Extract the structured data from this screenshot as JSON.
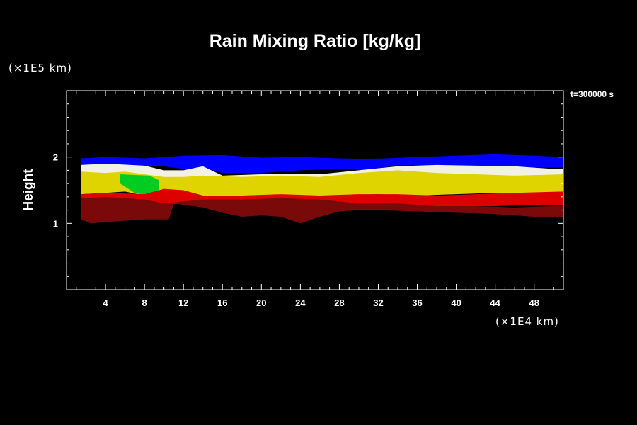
{
  "chart_data": {
    "type": "heatmap",
    "title": "Rain Mixing Ratio [kg/kg]",
    "ylabel": "Height",
    "y_unit": "(×1E5 km)",
    "x_unit": "(×1E4 km)",
    "timestamp": "t=300000 s",
    "xlim": [
      0,
      51
    ],
    "ylim": [
      0,
      3
    ],
    "x_ticks": [
      4,
      8,
      12,
      16,
      20,
      24,
      28,
      32,
      36,
      40,
      44,
      48
    ],
    "y_ticks": [
      1,
      2
    ],
    "colors": {
      "background": "#000000",
      "blue": "#0000ff",
      "white": "#f2f2e4",
      "yellow": "#e0d400",
      "green": "#00cc22",
      "red": "#dd0000",
      "dark_red": "#7a0a0a"
    },
    "bands": [
      {
        "name": "blue",
        "top": [
          [
            1.5,
            1.98
          ],
          [
            4,
            2.0
          ],
          [
            8,
            1.98
          ],
          [
            12,
            2.02
          ],
          [
            16,
            2.03
          ],
          [
            20,
            1.99
          ],
          [
            24,
            2.0
          ],
          [
            28,
            1.98
          ],
          [
            31,
            1.97
          ],
          [
            36,
            2.0
          ],
          [
            40,
            2.02
          ],
          [
            44,
            2.04
          ],
          [
            48,
            2.02
          ],
          [
            51,
            2.0
          ]
        ],
        "bottom": [
          [
            1.5,
            1.86
          ],
          [
            6,
            1.88
          ],
          [
            10,
            1.86
          ],
          [
            12,
            1.82
          ],
          [
            14,
            1.84
          ],
          [
            16,
            1.76
          ],
          [
            20,
            1.76
          ],
          [
            24,
            1.8
          ],
          [
            28,
            1.82
          ],
          [
            31,
            1.8
          ],
          [
            34,
            1.88
          ],
          [
            38,
            1.86
          ],
          [
            42,
            1.86
          ],
          [
            46,
            1.84
          ],
          [
            51,
            1.84
          ]
        ]
      },
      {
        "name": "white",
        "top": [
          [
            1.5,
            1.88
          ],
          [
            4,
            1.9
          ],
          [
            8,
            1.87
          ],
          [
            10,
            1.8
          ],
          [
            12,
            1.8
          ],
          [
            14,
            1.86
          ],
          [
            16,
            1.72
          ],
          [
            20,
            1.74
          ],
          [
            26,
            1.74
          ],
          [
            30,
            1.8
          ],
          [
            34,
            1.86
          ],
          [
            38,
            1.88
          ],
          [
            42,
            1.87
          ],
          [
            46,
            1.86
          ],
          [
            50,
            1.82
          ],
          [
            51,
            1.82
          ]
        ],
        "bottom": [
          [
            1.5,
            1.72
          ],
          [
            6,
            1.74
          ],
          [
            10,
            1.68
          ],
          [
            14,
            1.66
          ],
          [
            18,
            1.64
          ],
          [
            24,
            1.66
          ],
          [
            30,
            1.68
          ],
          [
            36,
            1.7
          ],
          [
            42,
            1.72
          ],
          [
            48,
            1.7
          ],
          [
            51,
            1.7
          ]
        ]
      },
      {
        "name": "yellow",
        "top": [
          [
            1.5,
            1.78
          ],
          [
            4,
            1.76
          ],
          [
            6,
            1.78
          ],
          [
            8,
            1.74
          ],
          [
            10,
            1.7
          ],
          [
            12,
            1.7
          ],
          [
            14,
            1.72
          ],
          [
            18,
            1.7
          ],
          [
            22,
            1.72
          ],
          [
            26,
            1.7
          ],
          [
            30,
            1.76
          ],
          [
            34,
            1.8
          ],
          [
            38,
            1.76
          ],
          [
            42,
            1.74
          ],
          [
            46,
            1.72
          ],
          [
            51,
            1.74
          ]
        ],
        "bottom": [
          [
            1.5,
            1.44
          ],
          [
            4,
            1.46
          ],
          [
            6,
            1.48
          ],
          [
            8,
            1.42
          ],
          [
            10,
            1.44
          ],
          [
            12,
            1.38
          ],
          [
            16,
            1.36
          ],
          [
            20,
            1.4
          ],
          [
            24,
            1.38
          ],
          [
            28,
            1.42
          ],
          [
            32,
            1.44
          ],
          [
            36,
            1.42
          ],
          [
            40,
            1.44
          ],
          [
            44,
            1.46
          ],
          [
            48,
            1.44
          ],
          [
            51,
            1.46
          ]
        ]
      },
      {
        "name": "green",
        "top": [
          [
            5.5,
            1.74
          ],
          [
            7,
            1.73
          ],
          [
            8.5,
            1.72
          ],
          [
            9.5,
            1.65
          ]
        ],
        "bottom": [
          [
            5.5,
            1.6
          ],
          [
            7,
            1.46
          ],
          [
            8.5,
            1.42
          ],
          [
            9.5,
            1.5
          ]
        ]
      },
      {
        "name": "red",
        "top": [
          [
            1.5,
            1.44
          ],
          [
            4,
            1.46
          ],
          [
            8,
            1.44
          ],
          [
            10,
            1.52
          ],
          [
            12,
            1.5
          ],
          [
            14,
            1.42
          ],
          [
            18,
            1.42
          ],
          [
            22,
            1.44
          ],
          [
            26,
            1.42
          ],
          [
            30,
            1.44
          ],
          [
            34,
            1.44
          ],
          [
            38,
            1.42
          ],
          [
            42,
            1.44
          ],
          [
            46,
            1.46
          ],
          [
            51,
            1.48
          ]
        ],
        "bottom": [
          [
            1.5,
            1.3
          ],
          [
            6,
            1.3
          ],
          [
            10,
            1.28
          ],
          [
            12,
            1.3
          ],
          [
            16,
            1.3
          ],
          [
            20,
            1.28
          ],
          [
            24,
            1.26
          ],
          [
            28,
            1.26
          ],
          [
            32,
            1.24
          ],
          [
            36,
            1.24
          ],
          [
            40,
            1.26
          ],
          [
            44,
            1.26
          ],
          [
            48,
            1.28
          ],
          [
            51,
            1.28
          ]
        ]
      },
      {
        "name": "dark_red",
        "top": [
          [
            1.5,
            1.38
          ],
          [
            4,
            1.4
          ],
          [
            8,
            1.36
          ],
          [
            10,
            1.3
          ],
          [
            14,
            1.36
          ],
          [
            18,
            1.36
          ],
          [
            22,
            1.38
          ],
          [
            26,
            1.36
          ],
          [
            30,
            1.3
          ],
          [
            34,
            1.3
          ],
          [
            38,
            1.26
          ],
          [
            42,
            1.26
          ],
          [
            46,
            1.24
          ],
          [
            50,
            1.26
          ],
          [
            51,
            1.26
          ]
        ],
        "bottom": [
          [
            1.5,
            1.06
          ],
          [
            2.5,
            1.0
          ],
          [
            4,
            1.02
          ],
          [
            6,
            1.04
          ],
          [
            8,
            1.06
          ],
          [
            10.5,
            1.06
          ],
          [
            11,
            1.3
          ],
          [
            14,
            1.24
          ],
          [
            16,
            1.16
          ],
          [
            18,
            1.1
          ],
          [
            20,
            1.12
          ],
          [
            22,
            1.1
          ],
          [
            24,
            1.0
          ],
          [
            26,
            1.1
          ],
          [
            28,
            1.18
          ],
          [
            30,
            1.2
          ],
          [
            32,
            1.2
          ],
          [
            36,
            1.18
          ],
          [
            40,
            1.16
          ],
          [
            44,
            1.14
          ],
          [
            48,
            1.1
          ],
          [
            51,
            1.1
          ]
        ]
      }
    ]
  }
}
